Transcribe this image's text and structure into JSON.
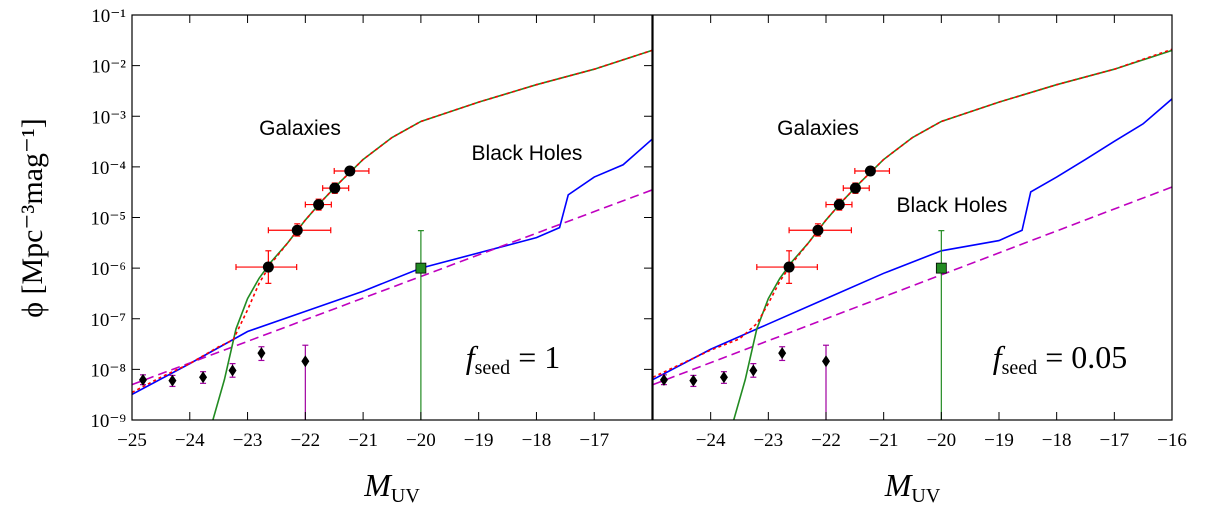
{
  "chart_data": [
    {
      "type": "line",
      "x_label": {
        "main": "M",
        "sub": "UV"
      },
      "y_label": "ϕ [Mpc⁻³mag⁻¹]",
      "xlim": [
        -25,
        -16
      ],
      "ylim": [
        1e-09,
        0.1
      ],
      "log_y": true,
      "xticks": [
        {
          "value": -25,
          "label": "−25"
        },
        {
          "value": -24,
          "label": "−24"
        },
        {
          "value": -23,
          "label": "−23"
        },
        {
          "value": -22,
          "label": "−22"
        },
        {
          "value": -21,
          "label": "−21"
        },
        {
          "value": -20,
          "label": "−20"
        },
        {
          "value": -19,
          "label": "−19"
        },
        {
          "value": -18,
          "label": "−18"
        },
        {
          "value": -17,
          "label": "−17"
        }
      ],
      "yticks": [
        {
          "value": 1e-09,
          "label": "10⁻⁹"
        },
        {
          "value": 1e-08,
          "label": "10⁻⁸"
        },
        {
          "value": 1e-07,
          "label": "10⁻⁷"
        },
        {
          "value": 1e-06,
          "label": "10⁻⁶"
        },
        {
          "value": 1e-05,
          "label": "10⁻⁵"
        },
        {
          "value": 0.0001,
          "label": "10⁻⁴"
        },
        {
          "value": 0.001,
          "label": "10⁻³"
        },
        {
          "value": 0.01,
          "label": "10⁻²"
        },
        {
          "value": 0.1,
          "label": "10⁻¹"
        }
      ],
      "series": [
        {
          "color": "#0000ff",
          "style": "solid",
          "x": [
            -25,
            -24,
            -23,
            -22,
            -21,
            -20,
            -19,
            -18,
            -17.6,
            -17.45,
            -17,
            -16.5,
            -16
          ],
          "values": [
            3.2e-09,
            1.3e-08,
            5.6e-08,
            1.4e-07,
            3.5e-07,
            1e-06,
            2e-06,
            4e-06,
            6.3e-06,
            2.8e-05,
            6.3e-05,
            0.00011,
            0.00035
          ]
        },
        {
          "color": "#bf00bf",
          "style": "dashed",
          "x": [
            -25,
            -16
          ],
          "values": [
            5e-09,
            3.5e-05
          ]
        },
        {
          "color": "#228b22",
          "style": "solid",
          "x": [
            -23.6,
            -23.4,
            -23.2,
            -23.0,
            -22.8,
            -22.6,
            -22.3,
            -22.0,
            -21.7,
            -21.4,
            -21.0,
            -20.5,
            -20,
            -19,
            -18,
            -17,
            -16
          ],
          "values": [
            1e-09,
            6.3e-09,
            6.3e-08,
            2.5e-07,
            6.3e-07,
            1.3e-06,
            3.2e-06,
            8.9e-06,
            2.2e-05,
            5e-05,
            0.00014,
            0.00038,
            0.00079,
            0.0019,
            0.0042,
            0.0085,
            0.02
          ]
        },
        {
          "color": "#ff0000",
          "style": "dotted",
          "x": [
            -25,
            -24.5,
            -24,
            -23.5,
            -23.25,
            -23.0,
            -22.8,
            -22.6,
            -22.3,
            -22.0,
            -21.7,
            -21.4,
            -21.0,
            -20.5,
            -20,
            -19,
            -18,
            -17,
            -16
          ],
          "values": [
            3.5e-09,
            7e-09,
            1.3e-08,
            2.8e-08,
            3.8e-08,
            1.5e-07,
            5e-07,
            1.2e-06,
            3.2e-06,
            8.9e-06,
            2.2e-05,
            5e-05,
            0.00014,
            0.00038,
            0.00079,
            0.0019,
            0.0042,
            0.0085,
            0.02
          ]
        }
      ],
      "point_sets": [
        {
          "marker": "circle",
          "color": "#000000",
          "err_color": "#ff0000",
          "x": [
            -22.64,
            -22.14,
            -21.77,
            -21.49,
            -21.23
          ],
          "values": [
            1.05e-06,
            5.6e-06,
            1.8e-05,
            3.8e-05,
            8.3e-05
          ],
          "x_low": [
            -23.2,
            -22.64,
            -22.0,
            -21.7,
            -21.5
          ],
          "x_high": [
            -22.15,
            -21.56,
            -21.55,
            -21.25,
            -20.9
          ],
          "y_low": [
            5e-07,
            4.3e-06,
            1.4e-05,
            3e-05,
            7e-05
          ],
          "y_high": [
            2.2e-06,
            7.5e-06,
            2.3e-05,
            4.8e-05,
            9.8e-05
          ]
        },
        {
          "marker": "diamond",
          "color": "#000000",
          "err_color": "#a000a0",
          "x": [
            -24.81,
            -24.3,
            -23.77,
            -23.26,
            -22.76,
            -22.0
          ],
          "values": [
            6.2e-09,
            6e-09,
            7e-09,
            9.5e-09,
            2.1e-08,
            1.45e-08
          ],
          "y_low": [
            5e-09,
            4.6e-09,
            5.3e-09,
            7e-09,
            1.5e-08,
            1e-09
          ],
          "y_high": [
            7.8e-09,
            7.6e-09,
            9e-09,
            1.3e-08,
            2.8e-08,
            3e-08
          ]
        },
        {
          "marker": "square",
          "color": "#228b22",
          "err_color": "#228b22",
          "x": [
            -20
          ],
          "values": [
            1e-06
          ],
          "y_low": [
            1e-09
          ],
          "y_high": [
            5.5e-06
          ]
        }
      ],
      "annotations": [
        "Galaxies",
        "Black Holes"
      ],
      "seed_label": {
        "symbol": "f",
        "sub": "seed",
        "rest": " = 1"
      }
    },
    {
      "type": "line",
      "x_label": {
        "main": "M",
        "sub": "UV"
      },
      "xlim": [
        -25,
        -16
      ],
      "ylim": [
        1e-09,
        0.1
      ],
      "log_y": true,
      "xticks": [
        {
          "value": -24,
          "label": "−24"
        },
        {
          "value": -23,
          "label": "−23"
        },
        {
          "value": -22,
          "label": "−22"
        },
        {
          "value": -21,
          "label": "−21"
        },
        {
          "value": -20,
          "label": "−20"
        },
        {
          "value": -19,
          "label": "−19"
        },
        {
          "value": -18,
          "label": "−18"
        },
        {
          "value": -17,
          "label": "−17"
        },
        {
          "value": -16,
          "label": "−16"
        }
      ],
      "series": [
        {
          "color": "#0000ff",
          "style": "solid",
          "x": [
            -25,
            -24,
            -23,
            -22,
            -21,
            -20,
            -19,
            -18.6,
            -18.45,
            -18,
            -17.5,
            -17,
            -16.5,
            -16
          ],
          "values": [
            6.3e-09,
            2.5e-08,
            7.9e-08,
            2.5e-07,
            7.9e-07,
            2.2e-06,
            3.5e-06,
            5.6e-06,
            3.2e-05,
            6.3e-05,
            0.00014,
            0.00032,
            0.00071,
            0.0022
          ]
        },
        {
          "color": "#bf00bf",
          "style": "dashed",
          "x": [
            -25,
            -16
          ],
          "values": [
            5e-09,
            4e-05
          ]
        },
        {
          "color": "#228b22",
          "style": "solid",
          "x": [
            -23.6,
            -23.4,
            -23.2,
            -23.0,
            -22.8,
            -22.6,
            -22.3,
            -22.0,
            -21.7,
            -21.4,
            -21.0,
            -20.5,
            -20,
            -19,
            -18,
            -17,
            -16
          ],
          "values": [
            1e-09,
            6.3e-09,
            6.3e-08,
            2.5e-07,
            6.3e-07,
            1.3e-06,
            3.2e-06,
            8.9e-06,
            2.2e-05,
            5e-05,
            0.00014,
            0.00038,
            0.00079,
            0.0019,
            0.0042,
            0.0085,
            0.02
          ]
        },
        {
          "color": "#ff0000",
          "style": "dotted",
          "x": [
            -25,
            -24.5,
            -24,
            -23.5,
            -23.2,
            -23.0,
            -22.8,
            -22.6,
            -22.3,
            -22.0,
            -21.7,
            -21.4,
            -21.0,
            -20.5,
            -20,
            -19,
            -18,
            -17,
            -16
          ],
          "values": [
            7e-09,
            1.3e-08,
            2.4e-08,
            4e-08,
            8e-08,
            2e-07,
            5.5e-07,
            1.2e-06,
            3.2e-06,
            8.9e-06,
            2.2e-05,
            5e-05,
            0.00014,
            0.00038,
            0.00079,
            0.0019,
            0.0042,
            0.0085,
            0.021
          ]
        }
      ],
      "point_sets": [
        {
          "marker": "circle",
          "color": "#000000",
          "err_color": "#ff0000",
          "x": [
            -22.64,
            -22.14,
            -21.77,
            -21.49,
            -21.23
          ],
          "values": [
            1.05e-06,
            5.6e-06,
            1.8e-05,
            3.8e-05,
            8.3e-05
          ],
          "x_low": [
            -23.2,
            -22.64,
            -22.0,
            -21.7,
            -21.5
          ],
          "x_high": [
            -22.15,
            -21.56,
            -21.55,
            -21.25,
            -20.9
          ],
          "y_low": [
            5e-07,
            4.3e-06,
            1.4e-05,
            3e-05,
            7e-05
          ],
          "y_high": [
            2.2e-06,
            7.5e-06,
            2.3e-05,
            4.8e-05,
            9.8e-05
          ]
        },
        {
          "marker": "diamond",
          "color": "#000000",
          "err_color": "#a000a0",
          "x": [
            -24.81,
            -24.3,
            -23.77,
            -23.26,
            -22.76,
            -22.0
          ],
          "values": [
            6.2e-09,
            6e-09,
            7e-09,
            9.5e-09,
            2.1e-08,
            1.45e-08
          ],
          "y_low": [
            5e-09,
            4.6e-09,
            5.3e-09,
            7e-09,
            1.5e-08,
            1e-09
          ],
          "y_high": [
            7.8e-09,
            7.6e-09,
            9e-09,
            1.3e-08,
            2.8e-08,
            3e-08
          ]
        },
        {
          "marker": "square",
          "color": "#228b22",
          "err_color": "#228b22",
          "x": [
            -20
          ],
          "values": [
            1e-06
          ],
          "y_low": [
            1e-09
          ],
          "y_high": [
            5.5e-06
          ]
        }
      ],
      "annotations": [
        "Galaxies",
        "Black Holes"
      ],
      "seed_label": {
        "symbol": "f",
        "sub": "seed",
        "rest": " = 0.05"
      }
    }
  ]
}
